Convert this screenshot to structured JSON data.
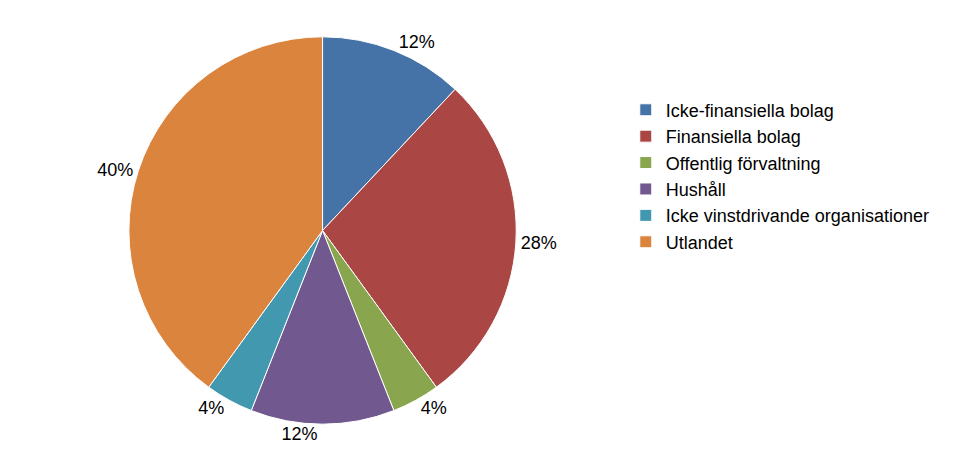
{
  "chart_data": {
    "type": "pie",
    "categories": [
      "Icke-finansiella bolag",
      "Finansiella bolag",
      "Offentlig förvaltning",
      "Hushåll",
      "Icke vinstdrivande organisationer",
      "Utlandet"
    ],
    "values": [
      12,
      28,
      4,
      12,
      4,
      40
    ],
    "value_labels": [
      "12%",
      "28%",
      "4%",
      "12%",
      "4%",
      "40%"
    ],
    "colors": [
      "#4572a7",
      "#aa4643",
      "#89a54e",
      "#71588f",
      "#4198af",
      "#db843d"
    ],
    "data_labels": true,
    "legend": "right"
  }
}
